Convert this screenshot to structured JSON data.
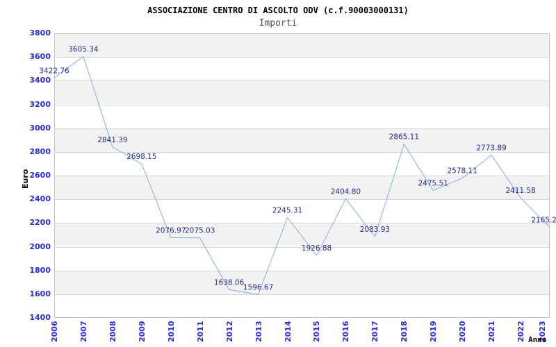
{
  "chart_data": {
    "type": "line",
    "title": "ASSOCIAZIONE CENTRO DI ASCOLTO ODV (c.f.90003000131)",
    "subtitle": "Importi",
    "xlabel": "Anno",
    "ylabel": "Euro",
    "categories": [
      "2006",
      "2007",
      "2008",
      "2009",
      "2010",
      "2011",
      "2012",
      "2013",
      "2014",
      "2015",
      "2016",
      "2017",
      "2018",
      "2019",
      "2020",
      "2021",
      "2022",
      "2023"
    ],
    "series": [
      {
        "name": "Importi",
        "values": [
          3422.76,
          3605.34,
          2841.39,
          2698.15,
          2076.97,
          2075.03,
          1638.06,
          1596.67,
          2245.31,
          1926.88,
          2404.8,
          2083.93,
          2865.11,
          2475.51,
          2578.11,
          2773.89,
          2411.58,
          2165.2
        ]
      }
    ],
    "point_labels": [
      "3422.76",
      "3605.34",
      "2841.39",
      "2698.15",
      "2076.97",
      "2075.03",
      "1638.06",
      "1596.67",
      "2245.31",
      "1926.88",
      "2404.80",
      "2083.93",
      "2865.11",
      "2475.51",
      "2578.11",
      "2773.89",
      "2411.58",
      "2165.2"
    ],
    "ylim": [
      1400,
      3800
    ],
    "ytick_step": 200,
    "grid": true,
    "banded_background": true,
    "legend": "none",
    "colors": {
      "line": "#7db1e8",
      "point_label": "#28289b",
      "axis_tick": "#2a2ada",
      "band": "#f2f2f2",
      "gridline": "#d8d8d8",
      "plot_border": "#c4c4c4",
      "title": "#000000",
      "subtitle": "#4d4d4d",
      "axis_title": "#000000",
      "background": "#ffffff"
    }
  }
}
